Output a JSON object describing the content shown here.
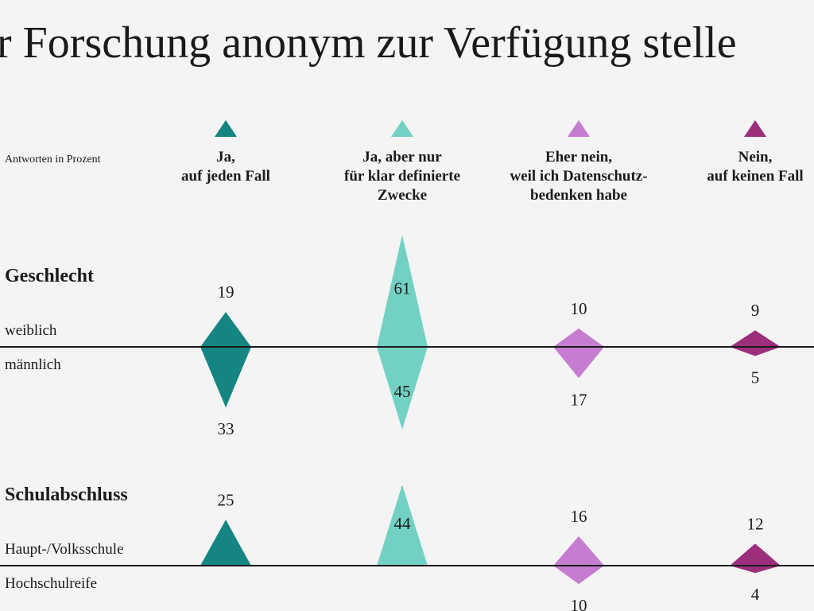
{
  "chart_data": {
    "type": "diamond",
    "title": "r Forschung anonym zur Verfügung stelle",
    "note": "Antworten in Prozent",
    "series": [
      {
        "name": "Ja,\nauf jeden Fall",
        "color": "#148580"
      },
      {
        "name": "Ja, aber nur\nfür klar definierte\nZwecke",
        "color": "#72d1c3"
      },
      {
        "name": "Eher nein,\nweil ich Datenschutz-\nbedenken habe",
        "color": "#c67cd0"
      },
      {
        "name": "Nein,\nauf keinen Fall",
        "color": "#9b2f7c"
      }
    ],
    "groups": [
      {
        "name": "Geschlecht",
        "top_label": "weiblich",
        "bottom_label": "männlich",
        "top_values": [
          19,
          61,
          10,
          9
        ],
        "bottom_values": [
          33,
          45,
          17,
          5
        ]
      },
      {
        "name": "Schulabschluss",
        "top_label": "Haupt-/Volksschule",
        "bottom_label": "Hochschulreife",
        "top_values": [
          25,
          44,
          16,
          12
        ],
        "bottom_values": [
          null,
          null,
          10,
          4
        ]
      }
    ]
  }
}
